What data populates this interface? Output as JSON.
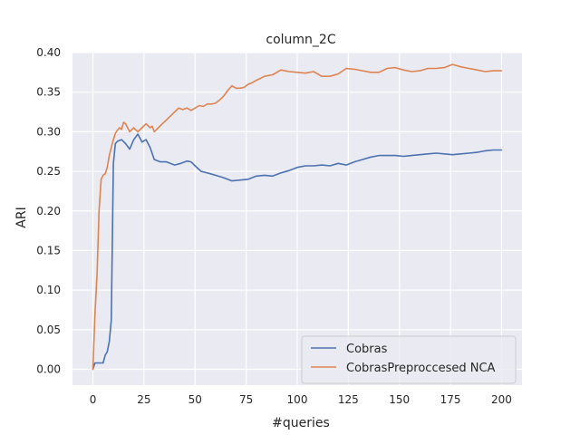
{
  "chart_data": {
    "type": "line",
    "title": "column_2C",
    "xlabel": "#queries",
    "ylabel": "ARI",
    "xlim": [
      -10,
      210
    ],
    "ylim": [
      -0.02,
      0.4
    ],
    "xticks": [
      0,
      25,
      50,
      75,
      100,
      125,
      150,
      175,
      200
    ],
    "yticks": [
      0.0,
      0.05,
      0.1,
      0.15,
      0.2,
      0.25,
      0.3,
      0.35,
      0.4
    ],
    "xtick_labels": [
      "0",
      "25",
      "50",
      "75",
      "100",
      "125",
      "150",
      "175",
      "200"
    ],
    "ytick_labels": [
      "0.00",
      "0.05",
      "0.10",
      "0.15",
      "0.20",
      "0.25",
      "0.30",
      "0.35",
      "0.40"
    ],
    "grid": true,
    "legend_position": "bottom-right",
    "series": [
      {
        "name": "Cobras",
        "color": "#4c72b0",
        "x": [
          0,
          1,
          2,
          3,
          4,
          5,
          6,
          7,
          8,
          9,
          10,
          11,
          12,
          14,
          16,
          18,
          20,
          22,
          24,
          26,
          28,
          30,
          33,
          36,
          40,
          43,
          46,
          48,
          50,
          53,
          56,
          60,
          64,
          68,
          72,
          76,
          80,
          84,
          88,
          92,
          96,
          100,
          104,
          108,
          112,
          116,
          120,
          124,
          128,
          132,
          136,
          140,
          144,
          148,
          152,
          156,
          160,
          164,
          168,
          172,
          176,
          180,
          184,
          188,
          192,
          196,
          200
        ],
        "y": [
          0.0,
          0.008,
          0.008,
          0.008,
          0.008,
          0.008,
          0.018,
          0.022,
          0.035,
          0.062,
          0.26,
          0.285,
          0.288,
          0.29,
          0.285,
          0.278,
          0.29,
          0.297,
          0.287,
          0.29,
          0.28,
          0.265,
          0.262,
          0.262,
          0.258,
          0.26,
          0.263,
          0.262,
          0.257,
          0.25,
          0.248,
          0.245,
          0.242,
          0.238,
          0.239,
          0.24,
          0.244,
          0.245,
          0.244,
          0.248,
          0.251,
          0.255,
          0.257,
          0.257,
          0.258,
          0.257,
          0.26,
          0.258,
          0.262,
          0.265,
          0.268,
          0.27,
          0.27,
          0.27,
          0.269,
          0.27,
          0.271,
          0.272,
          0.273,
          0.272,
          0.271,
          0.272,
          0.273,
          0.274,
          0.276,
          0.277,
          0.277
        ]
      },
      {
        "name": "CobrasPreproccesed NCA",
        "color": "#dd8452",
        "x": [
          0,
          1,
          2,
          3,
          4,
          5,
          6,
          7,
          8,
          9,
          10,
          11,
          12,
          13,
          14,
          15,
          16,
          18,
          20,
          22,
          24,
          26,
          28,
          29,
          30,
          32,
          34,
          36,
          38,
          40,
          42,
          44,
          46,
          48,
          50,
          52,
          54,
          56,
          58,
          60,
          62,
          64,
          66,
          68,
          70,
          72,
          74,
          76,
          78,
          80,
          84,
          88,
          92,
          96,
          100,
          104,
          108,
          112,
          116,
          120,
          124,
          128,
          132,
          136,
          140,
          144,
          148,
          152,
          156,
          160,
          164,
          168,
          172,
          176,
          180,
          184,
          188,
          192,
          196,
          200
        ],
        "y": [
          0.0,
          0.07,
          0.12,
          0.2,
          0.24,
          0.245,
          0.247,
          0.255,
          0.27,
          0.28,
          0.29,
          0.298,
          0.302,
          0.305,
          0.303,
          0.312,
          0.31,
          0.3,
          0.305,
          0.3,
          0.305,
          0.31,
          0.305,
          0.307,
          0.3,
          0.305,
          0.31,
          0.315,
          0.32,
          0.325,
          0.33,
          0.328,
          0.33,
          0.327,
          0.33,
          0.333,
          0.332,
          0.335,
          0.335,
          0.336,
          0.34,
          0.345,
          0.352,
          0.358,
          0.355,
          0.355,
          0.356,
          0.36,
          0.362,
          0.365,
          0.37,
          0.372,
          0.378,
          0.376,
          0.375,
          0.374,
          0.376,
          0.37,
          0.37,
          0.373,
          0.38,
          0.379,
          0.377,
          0.375,
          0.375,
          0.38,
          0.381,
          0.378,
          0.376,
          0.377,
          0.38,
          0.38,
          0.381,
          0.385,
          0.382,
          0.38,
          0.378,
          0.376,
          0.377,
          0.377
        ]
      }
    ]
  }
}
